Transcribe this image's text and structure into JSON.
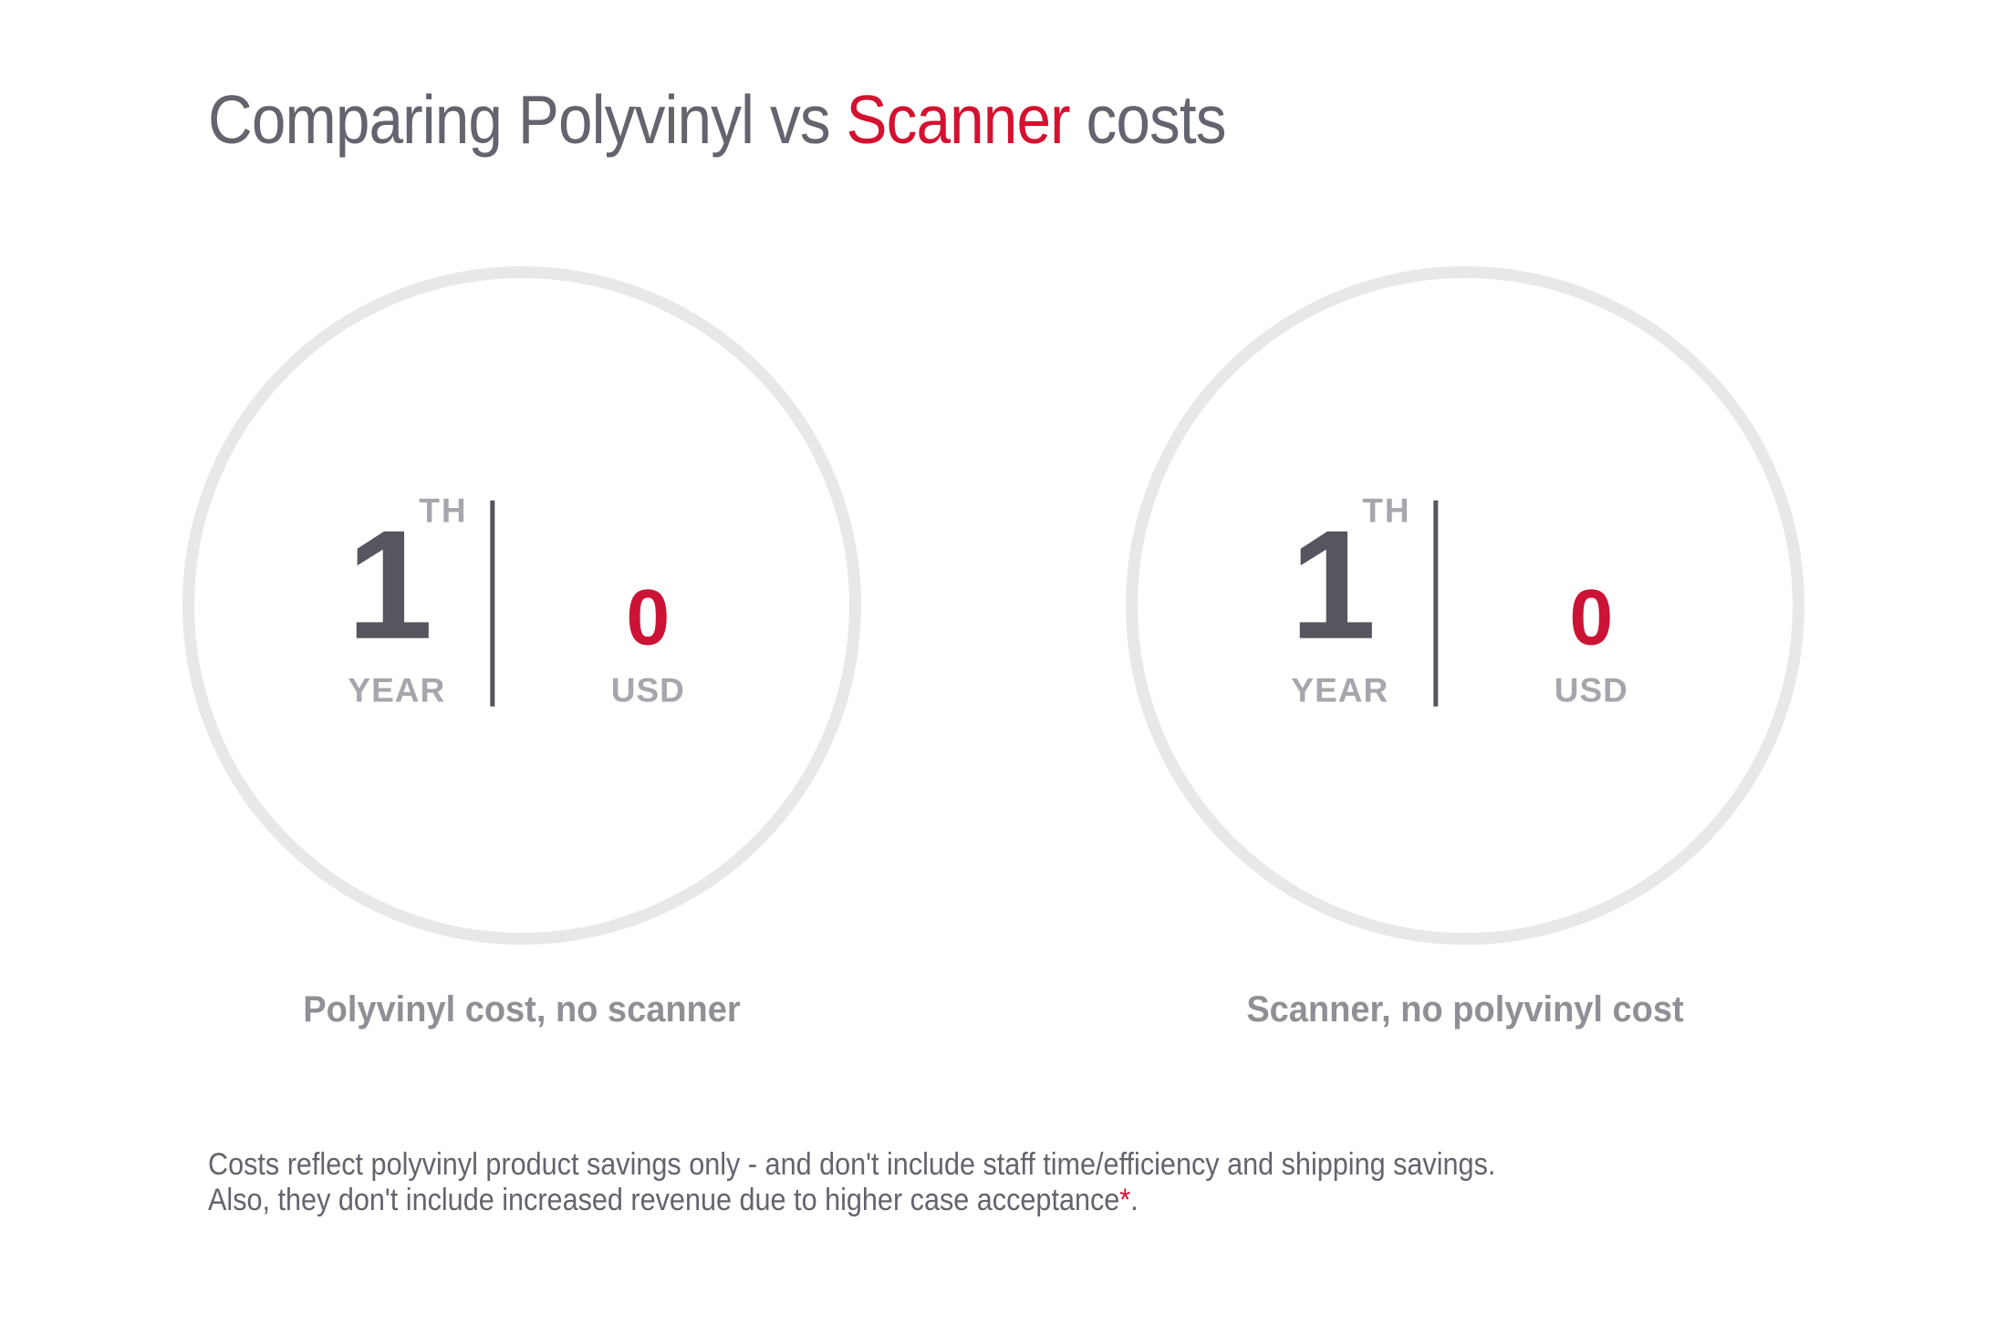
{
  "title": {
    "prefix": "Comparing Polyvinyl vs ",
    "highlight": "Scanner",
    "suffix": " costs"
  },
  "cards": [
    {
      "year_value": "1",
      "year_superscript": "TH",
      "year_label": "YEAR",
      "cost_value": "0",
      "cost_label": "USD",
      "caption": "Polyvinyl cost, no scanner"
    },
    {
      "year_value": "1",
      "year_superscript": "TH",
      "year_label": "YEAR",
      "cost_value": "0",
      "cost_label": "USD",
      "caption": "Scanner, no polyvinyl cost"
    }
  ],
  "footnote": {
    "line1": "Costs reflect polyvinyl product savings only - and don't include staff time/efficiency and shipping savings.",
    "line2": "Also, they don't include increased revenue due to higher case acceptance",
    "asterisk": "*",
    "period": "."
  },
  "colors": {
    "title_gray": "#63646d",
    "accent_red": "#d4122f",
    "zero_red": "#cd1335",
    "dark_number_gray": "#55565e",
    "light_label_gray": "#a5a7ac",
    "caption_gray": "#8f9096",
    "circle_ring_gray": "#e8e8ea",
    "background": "#ffffff"
  }
}
